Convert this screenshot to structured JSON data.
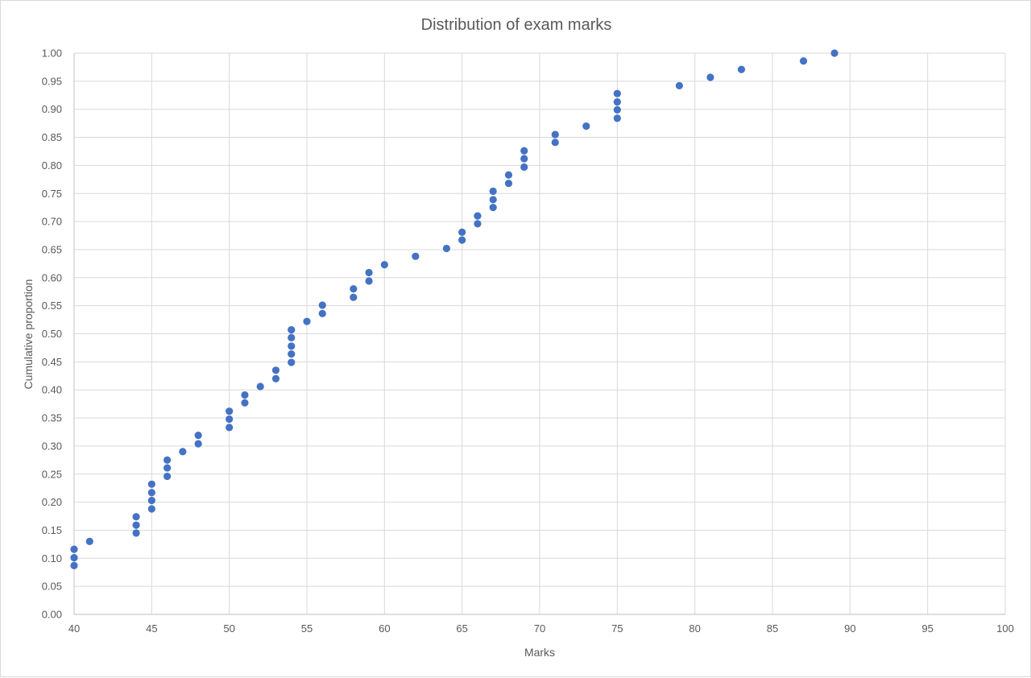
{
  "chart_data": {
    "type": "scatter",
    "title": "Distribution of exam marks",
    "xlabel": "Marks",
    "ylabel": "Cumulative proportion",
    "xlim": [
      40,
      100
    ],
    "ylim": [
      0,
      1
    ],
    "x_ticks": [
      "40",
      "45",
      "50",
      "55",
      "60",
      "65",
      "70",
      "75",
      "80",
      "85",
      "90",
      "95",
      "100"
    ],
    "y_ticks": [
      "0.00",
      "0.05",
      "0.10",
      "0.15",
      "0.20",
      "0.25",
      "0.30",
      "0.35",
      "0.40",
      "0.45",
      "0.50",
      "0.55",
      "0.60",
      "0.65",
      "0.70",
      "0.75",
      "0.80",
      "0.85",
      "0.90",
      "0.95",
      "1.00"
    ],
    "grid": true,
    "legend": "none",
    "marker_color": "#4472c4",
    "points": [
      {
        "x": 40,
        "y": 0.087
      },
      {
        "x": 40,
        "y": 0.101
      },
      {
        "x": 40,
        "y": 0.116
      },
      {
        "x": 41,
        "y": 0.13
      },
      {
        "x": 44,
        "y": 0.145
      },
      {
        "x": 44,
        "y": 0.159
      },
      {
        "x": 44,
        "y": 0.174
      },
      {
        "x": 45,
        "y": 0.188
      },
      {
        "x": 45,
        "y": 0.203
      },
      {
        "x": 45,
        "y": 0.217
      },
      {
        "x": 45,
        "y": 0.232
      },
      {
        "x": 46,
        "y": 0.246
      },
      {
        "x": 46,
        "y": 0.261
      },
      {
        "x": 46,
        "y": 0.275
      },
      {
        "x": 47,
        "y": 0.29
      },
      {
        "x": 48,
        "y": 0.304
      },
      {
        "x": 48,
        "y": 0.319
      },
      {
        "x": 50,
        "y": 0.333
      },
      {
        "x": 50,
        "y": 0.348
      },
      {
        "x": 50,
        "y": 0.362
      },
      {
        "x": 51,
        "y": 0.377
      },
      {
        "x": 51,
        "y": 0.391
      },
      {
        "x": 52,
        "y": 0.406
      },
      {
        "x": 53,
        "y": 0.42
      },
      {
        "x": 53,
        "y": 0.435
      },
      {
        "x": 54,
        "y": 0.449
      },
      {
        "x": 54,
        "y": 0.464
      },
      {
        "x": 54,
        "y": 0.478
      },
      {
        "x": 54,
        "y": 0.493
      },
      {
        "x": 54,
        "y": 0.507
      },
      {
        "x": 55,
        "y": 0.522
      },
      {
        "x": 56,
        "y": 0.536
      },
      {
        "x": 56,
        "y": 0.551
      },
      {
        "x": 58,
        "y": 0.565
      },
      {
        "x": 58,
        "y": 0.58
      },
      {
        "x": 59,
        "y": 0.594
      },
      {
        "x": 59,
        "y": 0.609
      },
      {
        "x": 60,
        "y": 0.623
      },
      {
        "x": 62,
        "y": 0.638
      },
      {
        "x": 64,
        "y": 0.652
      },
      {
        "x": 65,
        "y": 0.667
      },
      {
        "x": 65,
        "y": 0.681
      },
      {
        "x": 66,
        "y": 0.696
      },
      {
        "x": 66,
        "y": 0.71
      },
      {
        "x": 67,
        "y": 0.725
      },
      {
        "x": 67,
        "y": 0.739
      },
      {
        "x": 67,
        "y": 0.754
      },
      {
        "x": 68,
        "y": 0.768
      },
      {
        "x": 68,
        "y": 0.783
      },
      {
        "x": 69,
        "y": 0.797
      },
      {
        "x": 69,
        "y": 0.812
      },
      {
        "x": 69,
        "y": 0.826
      },
      {
        "x": 71,
        "y": 0.841
      },
      {
        "x": 71,
        "y": 0.855
      },
      {
        "x": 73,
        "y": 0.87
      },
      {
        "x": 75,
        "y": 0.884
      },
      {
        "x": 75,
        "y": 0.899
      },
      {
        "x": 75,
        "y": 0.913
      },
      {
        "x": 75,
        "y": 0.928
      },
      {
        "x": 79,
        "y": 0.942
      },
      {
        "x": 81,
        "y": 0.957
      },
      {
        "x": 83,
        "y": 0.971
      },
      {
        "x": 87,
        "y": 0.986
      },
      {
        "x": 89,
        "y": 1.0
      }
    ]
  }
}
